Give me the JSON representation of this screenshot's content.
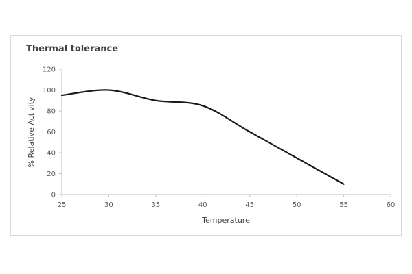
{
  "chart_data": {
    "type": "line",
    "title": "Thermal tolerance",
    "xlabel": "Temperature",
    "ylabel": "% Relative Activity",
    "xlim": [
      25,
      60
    ],
    "ylim": [
      0,
      120
    ],
    "xticks": [
      25,
      30,
      35,
      40,
      45,
      50,
      55,
      60
    ],
    "yticks": [
      0,
      20,
      40,
      60,
      80,
      100,
      120
    ],
    "grid": false,
    "smooth": true,
    "series": [
      {
        "color": "#1a1a1a",
        "x": [
          25,
          30,
          35,
          40,
          45,
          50,
          55
        ],
        "values": [
          95,
          100,
          90,
          85,
          60,
          35,
          10
        ]
      }
    ]
  }
}
